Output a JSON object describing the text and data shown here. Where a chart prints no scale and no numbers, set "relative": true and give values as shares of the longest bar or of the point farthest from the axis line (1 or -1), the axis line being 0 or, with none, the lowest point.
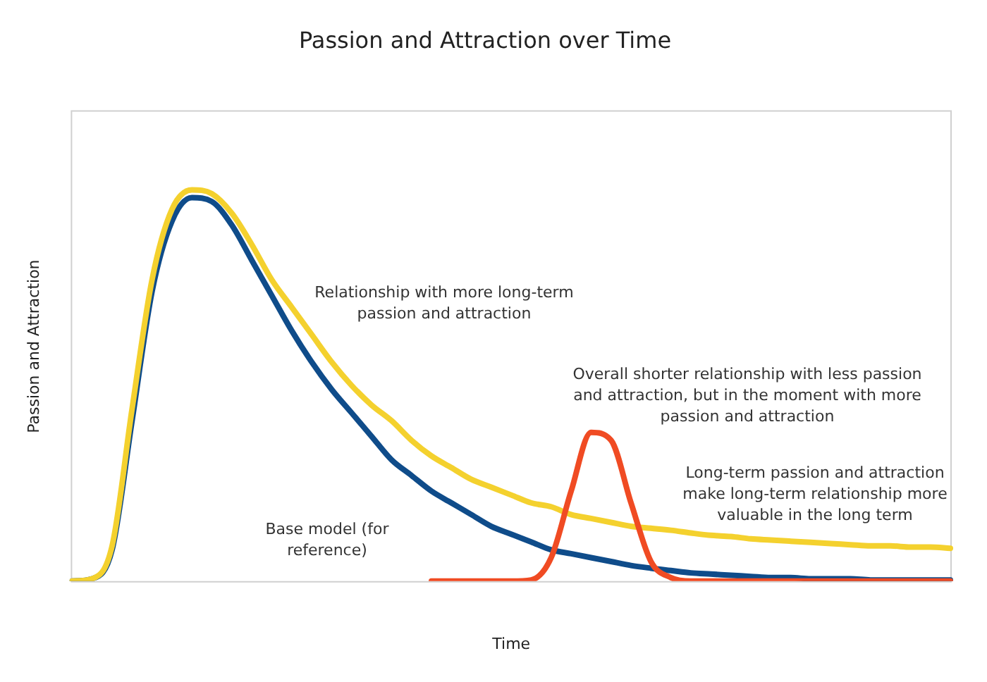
{
  "chart_data": {
    "type": "line",
    "title": "Passion and Attraction over Time",
    "xlabel": "Time",
    "ylabel": "Passion and Attraction",
    "relative": true,
    "grid": false,
    "legend": false,
    "marker": "none",
    "line_style": "solid",
    "categories": [
      null,
      null,
      null,
      null,
      null,
      null,
      null,
      null,
      null,
      null,
      null,
      null,
      null,
      null,
      null,
      null,
      null,
      null,
      null,
      null,
      null,
      null,
      null,
      null,
      null,
      null,
      null,
      null,
      null,
      null,
      null,
      null,
      null,
      null,
      null,
      null,
      null,
      null,
      null,
      null,
      null,
      null,
      null,
      null,
      null
    ],
    "series": [
      {
        "color": "#0f4c8a",
        "values": [
          0,
          0.006,
          0.08,
          0.41,
          0.74,
          0.92,
          0.98,
          0.97,
          0.91,
          0.82,
          0.73,
          0.64,
          0.56,
          0.49,
          0.43,
          0.37,
          0.31,
          0.27,
          0.23,
          0.2,
          0.17,
          0.14,
          0.12,
          0.1,
          0.08,
          0.07,
          0.06,
          0.05,
          0.04,
          0.033,
          0.027,
          0.021,
          0.018,
          0.015,
          0.012,
          0.009,
          0.009,
          0.006,
          0.006,
          0.006,
          0.003,
          0.003,
          0.003,
          0.003,
          0.003
        ]
      },
      {
        "color": "#f4d12e",
        "values": [
          0,
          0.006,
          0.09,
          0.44,
          0.77,
          0.95,
          1,
          0.99,
          0.94,
          0.86,
          0.77,
          0.7,
          0.63,
          0.56,
          0.5,
          0.45,
          0.41,
          0.36,
          0.32,
          0.29,
          0.26,
          0.24,
          0.22,
          0.2,
          0.19,
          0.17,
          0.16,
          0.15,
          0.14,
          0.135,
          0.13,
          0.123,
          0.117,
          0.114,
          0.108,
          0.105,
          0.102,
          0.099,
          0.096,
          0.093,
          0.09,
          0.09,
          0.087,
          0.087,
          0.084
        ]
      },
      {
        "color": "#f04b23",
        "values": [
          null,
          null,
          null,
          null,
          null,
          null,
          null,
          null,
          null,
          null,
          null,
          null,
          null,
          null,
          null,
          null,
          null,
          null,
          0,
          0,
          0,
          0,
          0,
          0.003,
          0.06,
          0.23,
          0.38,
          0.36,
          0.2,
          0.05,
          0.009,
          0,
          0,
          0,
          0,
          0,
          0,
          0,
          0,
          0,
          0,
          0,
          0,
          0,
          0
        ]
      }
    ],
    "annotations": [
      "Relationship with more long-term passion and attraction",
      "Overall shorter relationship with less passion and attraction, but in the moment with more passion and attraction",
      "Base model (for reference)",
      "Long-term passion and attraction make long-term relationship more valuable in the long term"
    ]
  }
}
